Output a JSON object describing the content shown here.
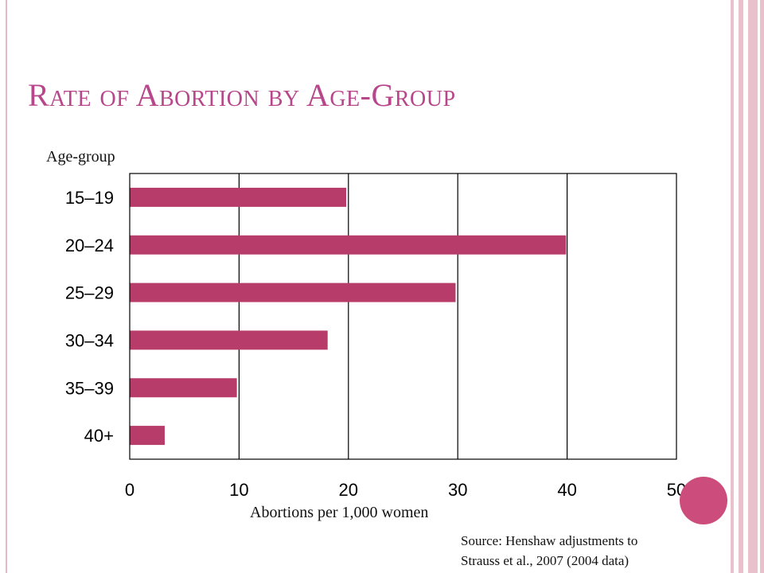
{
  "title": "Rate of Abortion by Age-Group",
  "source": {
    "line1": "Source: Henshaw adjustments to",
    "line2": "Strauss et al., 2007 (2004 data)"
  },
  "colors": {
    "bar": "#b83c6a",
    "title": "#b7468b",
    "accent_circle": "#cc4d7b",
    "frame": "#e8c1cc"
  },
  "chart_data": {
    "type": "bar",
    "orientation": "horizontal",
    "categories": [
      "15–19",
      "20–24",
      "25–29",
      "30–34",
      "35–39",
      "40+"
    ],
    "values": [
      19.8,
      39.9,
      29.8,
      18.1,
      9.8,
      3.2
    ],
    "xlabel": "Abortions per 1,000 women",
    "ylabel": "Age-group",
    "xlim": [
      0,
      50
    ],
    "xticks": [
      0,
      10,
      20,
      30,
      40,
      50
    ],
    "grid": "vertical",
    "legend": "none"
  }
}
